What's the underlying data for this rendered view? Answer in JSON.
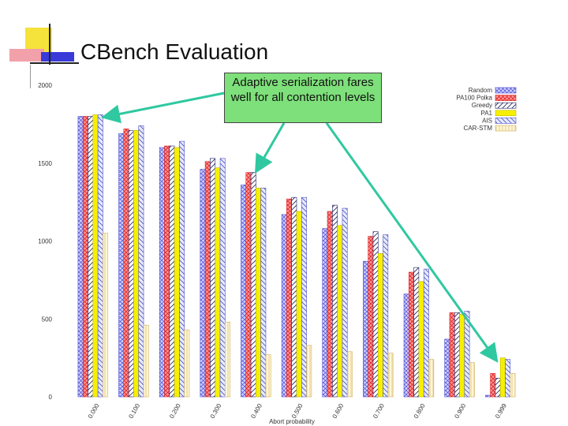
{
  "slide": {
    "title": "CBench Evaluation",
    "callout": "Adaptive serialization fares well for all contention levels"
  },
  "colors": {
    "arrow": "#2fc8a0",
    "callout_bg": "#7ee07a",
    "deco_yellow": "#f5e23a",
    "deco_red": "#f06070",
    "deco_blue": "#3a3ad8"
  },
  "chart_data": {
    "type": "bar",
    "xlabel": "Abort probability",
    "ylabel": "",
    "ylim": [
      0,
      2000
    ],
    "yticks": [
      0,
      500,
      1000,
      1500,
      2000
    ],
    "grid": false,
    "legend_position": "top-right",
    "categories": [
      "0.000",
      "0.100",
      "0.200",
      "0.300",
      "0.400",
      "0.500",
      "0.600",
      "0.700",
      "0.800",
      "0.900",
      "0.999"
    ],
    "series": [
      {
        "name": "Random",
        "values": [
          1800,
          1690,
          1600,
          1460,
          1360,
          1170,
          1080,
          870,
          660,
          370,
          10
        ],
        "fill": "#cfd3ff",
        "pattern": "cross",
        "stroke": "#4a4ad0"
      },
      {
        "name": "PA100 Polka",
        "values": [
          1800,
          1720,
          1610,
          1510,
          1440,
          1270,
          1190,
          1030,
          800,
          540,
          150
        ],
        "fill": "#ff9a9a",
        "pattern": "cross",
        "stroke": "#e02020"
      },
      {
        "name": "Greedy",
        "values": [
          1800,
          1710,
          1610,
          1530,
          1440,
          1280,
          1230,
          1060,
          830,
          540,
          120
        ],
        "fill": "#ffffff",
        "pattern": "diag",
        "stroke": "#202060"
      },
      {
        "name": "PA1",
        "values": [
          1810,
          1710,
          1600,
          1470,
          1340,
          1190,
          1100,
          920,
          740,
          530,
          250
        ],
        "fill": "#f6f000",
        "pattern": "none",
        "stroke": "#c0b800"
      },
      {
        "name": "AIS",
        "values": [
          1810,
          1740,
          1640,
          1530,
          1340,
          1280,
          1210,
          1040,
          820,
          550,
          240
        ],
        "fill": "#e6ecff",
        "pattern": "diag",
        "stroke": "#5050c0"
      },
      {
        "name": "CAR-STM",
        "values": [
          1050,
          460,
          430,
          480,
          270,
          330,
          290,
          280,
          240,
          220,
          150
        ],
        "fill": "#fff6d6",
        "pattern": "vert",
        "stroke": "#d0b060"
      }
    ]
  }
}
